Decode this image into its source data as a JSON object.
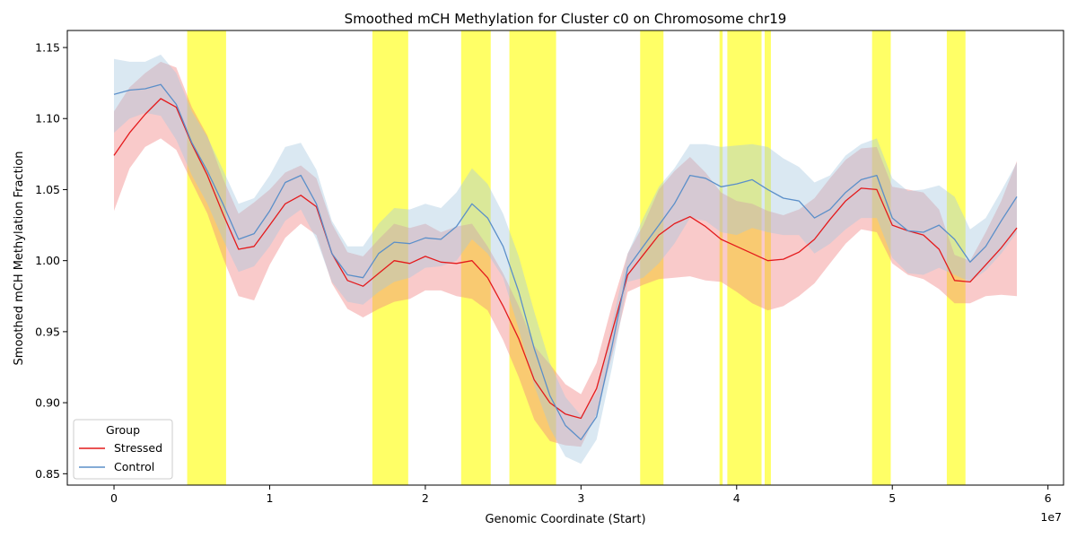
{
  "chart_data": {
    "type": "line",
    "title": "Smoothed mCH Methylation for Cluster c0 on Chromosome chr19",
    "xlabel": "Genomic Coordinate (Start)",
    "ylabel": "Smoothed mCH Methylation Fraction",
    "x_offset_label": "1e7",
    "xlim": [
      -3000000,
      61000000
    ],
    "ylim": [
      0.842,
      1.162
    ],
    "xticks": [
      0,
      10000000,
      20000000,
      30000000,
      40000000,
      50000000,
      60000000
    ],
    "xtick_labels": [
      "0",
      "1",
      "2",
      "3",
      "4",
      "5",
      "6"
    ],
    "yticks": [
      0.85,
      0.9,
      0.95,
      1.0,
      1.05,
      1.1,
      1.15
    ],
    "ytick_labels": [
      "0.85",
      "0.90",
      "0.95",
      "1.00",
      "1.05",
      "1.10",
      "1.15"
    ],
    "grid": false,
    "legend": {
      "title": "Group",
      "placement": "lower-left"
    },
    "highlight_regions": [
      [
        4700000,
        7200000
      ],
      [
        16600000,
        18900000
      ],
      [
        22300000,
        24200000
      ],
      [
        25400000,
        28400000
      ],
      [
        33800000,
        35300000
      ],
      [
        38900000,
        39100000
      ],
      [
        39400000,
        41600000
      ],
      [
        41800000,
        42200000
      ],
      [
        48700000,
        49900000
      ],
      [
        53500000,
        54700000
      ]
    ],
    "series": [
      {
        "name": "Stressed",
        "color": "#e41a1c",
        "band_color": "#f08080",
        "x": [
          0,
          1000000,
          2000000,
          3000000,
          4000000,
          5000000,
          6000000,
          7000000,
          8000000,
          9000000,
          10000000,
          11000000,
          12000000,
          13000000,
          14000000,
          15000000,
          16000000,
          17000000,
          18000000,
          19000000,
          20000000,
          21000000,
          22000000,
          23000000,
          24000000,
          25000000,
          26000000,
          27000000,
          28000000,
          29000000,
          30000000,
          31000000,
          32000000,
          33000000,
          34000000,
          35000000,
          36000000,
          37000000,
          38000000,
          39000000,
          40000000,
          41000000,
          42000000,
          43000000,
          44000000,
          45000000,
          46000000,
          47000000,
          48000000,
          49000000,
          50000000,
          51000000,
          52000000,
          53000000,
          54000000,
          55000000,
          56000000,
          57000000,
          58000000
        ],
        "y": [
          1.074,
          1.09,
          1.103,
          1.114,
          1.108,
          1.082,
          1.06,
          1.033,
          1.008,
          1.01,
          1.025,
          1.04,
          1.046,
          1.038,
          1.005,
          0.986,
          0.982,
          0.991,
          1.0,
          0.998,
          1.003,
          0.999,
          0.998,
          1.0,
          0.988,
          0.968,
          0.945,
          0.916,
          0.9,
          0.892,
          0.889,
          0.91,
          0.95,
          0.99,
          1.004,
          1.018,
          1.026,
          1.031,
          1.024,
          1.015,
          1.01,
          1.005,
          1.0,
          1.001,
          1.006,
          1.015,
          1.029,
          1.042,
          1.051,
          1.05,
          1.025,
          1.021,
          1.018,
          1.008,
          0.986,
          0.985,
          0.997,
          1.009,
          1.023
        ],
        "lower": [
          1.035,
          1.065,
          1.08,
          1.086,
          1.078,
          1.055,
          1.033,
          1.002,
          0.975,
          0.972,
          0.997,
          1.016,
          1.026,
          1.018,
          0.984,
          0.966,
          0.96,
          0.966,
          0.971,
          0.973,
          0.979,
          0.979,
          0.975,
          0.973,
          0.965,
          0.944,
          0.918,
          0.888,
          0.873,
          0.87,
          0.869,
          0.892,
          0.933,
          0.978,
          0.983,
          0.987,
          0.988,
          0.989,
          0.986,
          0.985,
          0.978,
          0.97,
          0.965,
          0.968,
          0.975,
          0.984,
          0.998,
          1.012,
          1.022,
          1.02,
          0.998,
          0.99,
          0.987,
          0.98,
          0.97,
          0.97,
          0.975,
          0.976,
          0.975
        ],
        "upper": [
          1.105,
          1.122,
          1.132,
          1.14,
          1.136,
          1.108,
          1.088,
          1.058,
          1.033,
          1.041,
          1.05,
          1.062,
          1.067,
          1.058,
          1.026,
          1.006,
          1.003,
          1.015,
          1.026,
          1.023,
          1.026,
          1.02,
          1.024,
          1.026,
          1.01,
          0.991,
          0.968,
          0.94,
          0.927,
          0.913,
          0.906,
          0.928,
          0.969,
          1.005,
          1.025,
          1.05,
          1.063,
          1.073,
          1.062,
          1.048,
          1.042,
          1.04,
          1.035,
          1.032,
          1.036,
          1.044,
          1.058,
          1.071,
          1.079,
          1.08,
          1.052,
          1.05,
          1.048,
          1.036,
          1.004,
          1.0,
          1.02,
          1.042,
          1.07
        ]
      },
      {
        "name": "Control",
        "color": "#5b8fc9",
        "band_color": "#a8c8e0",
        "x": [
          0,
          1000000,
          2000000,
          3000000,
          4000000,
          5000000,
          6000000,
          7000000,
          8000000,
          9000000,
          10000000,
          11000000,
          12000000,
          13000000,
          14000000,
          15000000,
          16000000,
          17000000,
          18000000,
          19000000,
          20000000,
          21000000,
          22000000,
          23000000,
          24000000,
          25000000,
          26000000,
          27000000,
          28000000,
          29000000,
          30000000,
          31000000,
          32000000,
          33000000,
          34000000,
          35000000,
          36000000,
          37000000,
          38000000,
          39000000,
          40000000,
          41000000,
          42000000,
          43000000,
          44000000,
          45000000,
          46000000,
          47000000,
          48000000,
          49000000,
          50000000,
          51000000,
          52000000,
          53000000,
          54000000,
          55000000,
          56000000,
          57000000,
          58000000
        ],
        "y": [
          1.117,
          1.12,
          1.121,
          1.124,
          1.11,
          1.083,
          1.063,
          1.04,
          1.015,
          1.019,
          1.035,
          1.055,
          1.06,
          1.04,
          1.005,
          0.99,
          0.988,
          1.005,
          1.013,
          1.012,
          1.016,
          1.015,
          1.024,
          1.04,
          1.03,
          1.01,
          0.978,
          0.938,
          0.905,
          0.884,
          0.874,
          0.89,
          0.94,
          0.995,
          1.01,
          1.025,
          1.04,
          1.06,
          1.058,
          1.052,
          1.054,
          1.057,
          1.05,
          1.044,
          1.042,
          1.03,
          1.036,
          1.048,
          1.057,
          1.06,
          1.03,
          1.021,
          1.02,
          1.025,
          1.015,
          0.999,
          1.01,
          1.028,
          1.045
        ],
        "lower": [
          1.09,
          1.1,
          1.104,
          1.102,
          1.085,
          1.06,
          1.04,
          1.015,
          0.992,
          0.996,
          1.01,
          1.028,
          1.036,
          1.015,
          0.985,
          0.971,
          0.969,
          0.978,
          0.985,
          0.988,
          0.995,
          0.996,
          1.0,
          1.015,
          1.005,
          0.988,
          0.952,
          0.912,
          0.882,
          0.862,
          0.857,
          0.874,
          0.925,
          0.985,
          0.988,
          0.998,
          1.012,
          1.03,
          1.028,
          1.02,
          1.018,
          1.023,
          1.02,
          1.018,
          1.018,
          1.005,
          1.012,
          1.022,
          1.03,
          1.03,
          1.002,
          0.991,
          0.99,
          0.995,
          0.99,
          0.985,
          0.993,
          1.005,
          1.02
        ],
        "upper": [
          1.142,
          1.14,
          1.14,
          1.145,
          1.132,
          1.105,
          1.087,
          1.064,
          1.04,
          1.044,
          1.06,
          1.08,
          1.083,
          1.064,
          1.028,
          1.01,
          1.01,
          1.026,
          1.037,
          1.036,
          1.04,
          1.037,
          1.048,
          1.065,
          1.054,
          1.033,
          1.003,
          0.964,
          0.928,
          0.904,
          0.891,
          0.907,
          0.956,
          1.005,
          1.03,
          1.052,
          1.065,
          1.082,
          1.082,
          1.08,
          1.081,
          1.082,
          1.08,
          1.072,
          1.066,
          1.055,
          1.06,
          1.074,
          1.082,
          1.086,
          1.058,
          1.049,
          1.05,
          1.053,
          1.045,
          1.022,
          1.03,
          1.049,
          1.069
        ]
      }
    ]
  }
}
